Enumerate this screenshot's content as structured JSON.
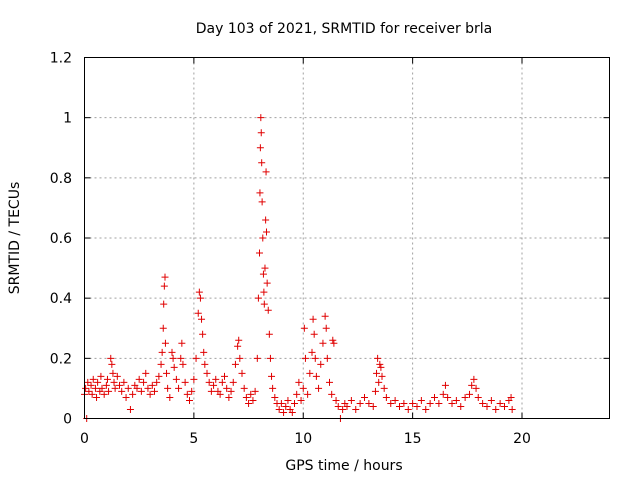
{
  "chart_data": {
    "type": "scatter",
    "title": "Day 103 of 2021, SRMTID for receiver brla",
    "xlabel": "GPS time / hours",
    "ylabel": "SRMTID / TECUs",
    "xlim": [
      0,
      24
    ],
    "ylim": [
      0,
      1.2
    ],
    "xticks": [
      0,
      5,
      10,
      15,
      20
    ],
    "xtick_labels": [
      "0",
      "5",
      "10",
      "15",
      "20"
    ],
    "yticks": [
      0,
      0.2,
      0.4,
      0.6,
      0.8,
      1,
      1.2
    ],
    "ytick_labels": [
      "0",
      "0.2",
      "0.4",
      "0.6",
      "0.8",
      "1",
      "1.2"
    ],
    "grid": true,
    "marker": "+",
    "color": "#e00000",
    "series": [
      {
        "name": "SRMTID",
        "points": [
          [
            0.0,
            0.08
          ],
          [
            0.05,
            0.1
          ],
          [
            0.1,
            0.0
          ],
          [
            0.15,
            0.12
          ],
          [
            0.2,
            0.09
          ],
          [
            0.3,
            0.11
          ],
          [
            0.35,
            0.08
          ],
          [
            0.4,
            0.13
          ],
          [
            0.5,
            0.1
          ],
          [
            0.55,
            0.07
          ],
          [
            0.6,
            0.12
          ],
          [
            0.7,
            0.09
          ],
          [
            0.75,
            0.14
          ],
          [
            0.8,
            0.1
          ],
          [
            0.9,
            0.08
          ],
          [
            1.0,
            0.11
          ],
          [
            1.05,
            0.13
          ],
          [
            1.1,
            0.09
          ],
          [
            1.2,
            0.2
          ],
          [
            1.25,
            0.18
          ],
          [
            1.3,
            0.15
          ],
          [
            1.35,
            0.12
          ],
          [
            1.4,
            0.1
          ],
          [
            1.5,
            0.14
          ],
          [
            1.6,
            0.11
          ],
          [
            1.7,
            0.09
          ],
          [
            1.8,
            0.12
          ],
          [
            1.9,
            0.07
          ],
          [
            2.0,
            0.1
          ],
          [
            2.1,
            0.03
          ],
          [
            2.2,
            0.08
          ],
          [
            2.3,
            0.11
          ],
          [
            2.4,
            0.1
          ],
          [
            2.5,
            0.13
          ],
          [
            2.6,
            0.09
          ],
          [
            2.7,
            0.12
          ],
          [
            2.8,
            0.15
          ],
          [
            2.9,
            0.1
          ],
          [
            3.0,
            0.08
          ],
          [
            3.1,
            0.11
          ],
          [
            3.2,
            0.09
          ],
          [
            3.3,
            0.12
          ],
          [
            3.4,
            0.14
          ],
          [
            3.5,
            0.18
          ],
          [
            3.55,
            0.22
          ],
          [
            3.6,
            0.3
          ],
          [
            3.62,
            0.38
          ],
          [
            3.65,
            0.44
          ],
          [
            3.68,
            0.47
          ],
          [
            3.7,
            0.25
          ],
          [
            3.75,
            0.15
          ],
          [
            3.8,
            0.1
          ],
          [
            3.9,
            0.07
          ],
          [
            4.0,
            0.22
          ],
          [
            4.05,
            0.2
          ],
          [
            4.1,
            0.17
          ],
          [
            4.2,
            0.13
          ],
          [
            4.3,
            0.1
          ],
          [
            4.4,
            0.2
          ],
          [
            4.45,
            0.25
          ],
          [
            4.5,
            0.18
          ],
          [
            4.6,
            0.12
          ],
          [
            4.7,
            0.08
          ],
          [
            4.8,
            0.06
          ],
          [
            4.9,
            0.09
          ],
          [
            5.0,
            0.13
          ],
          [
            5.1,
            0.2
          ],
          [
            5.2,
            0.35
          ],
          [
            5.25,
            0.42
          ],
          [
            5.3,
            0.4
          ],
          [
            5.35,
            0.33
          ],
          [
            5.4,
            0.28
          ],
          [
            5.45,
            0.22
          ],
          [
            5.5,
            0.18
          ],
          [
            5.6,
            0.15
          ],
          [
            5.7,
            0.12
          ],
          [
            5.8,
            0.09
          ],
          [
            5.9,
            0.11
          ],
          [
            6.0,
            0.13
          ],
          [
            6.1,
            0.09
          ],
          [
            6.2,
            0.08
          ],
          [
            6.3,
            0.12
          ],
          [
            6.4,
            0.14
          ],
          [
            6.5,
            0.1
          ],
          [
            6.6,
            0.07
          ],
          [
            6.7,
            0.09
          ],
          [
            6.8,
            0.12
          ],
          [
            6.9,
            0.18
          ],
          [
            7.0,
            0.24
          ],
          [
            7.05,
            0.26
          ],
          [
            7.1,
            0.2
          ],
          [
            7.2,
            0.15
          ],
          [
            7.3,
            0.1
          ],
          [
            7.4,
            0.07
          ],
          [
            7.5,
            0.05
          ],
          [
            7.6,
            0.08
          ],
          [
            7.7,
            0.06
          ],
          [
            7.8,
            0.09
          ],
          [
            7.9,
            0.2
          ],
          [
            7.95,
            0.4
          ],
          [
            8.0,
            0.55
          ],
          [
            8.02,
            0.75
          ],
          [
            8.04,
            0.9
          ],
          [
            8.06,
            1.0
          ],
          [
            8.08,
            0.95
          ],
          [
            8.1,
            0.85
          ],
          [
            8.12,
            0.72
          ],
          [
            8.15,
            0.6
          ],
          [
            8.18,
            0.48
          ],
          [
            8.2,
            0.42
          ],
          [
            8.22,
            0.38
          ],
          [
            8.25,
            0.5
          ],
          [
            8.28,
            0.66
          ],
          [
            8.3,
            0.82
          ],
          [
            8.32,
            0.62
          ],
          [
            8.35,
            0.45
          ],
          [
            8.4,
            0.36
          ],
          [
            8.45,
            0.28
          ],
          [
            8.5,
            0.2
          ],
          [
            8.55,
            0.14
          ],
          [
            8.6,
            0.1
          ],
          [
            8.7,
            0.07
          ],
          [
            8.8,
            0.05
          ],
          [
            8.9,
            0.03
          ],
          [
            9.0,
            0.05
          ],
          [
            9.1,
            0.02
          ],
          [
            9.2,
            0.04
          ],
          [
            9.3,
            0.06
          ],
          [
            9.4,
            0.03
          ],
          [
            9.5,
            0.02
          ],
          [
            9.6,
            0.05
          ],
          [
            9.7,
            0.08
          ],
          [
            9.8,
            0.12
          ],
          [
            9.9,
            0.06
          ],
          [
            10.0,
            0.1
          ],
          [
            10.05,
            0.3
          ],
          [
            10.1,
            0.2
          ],
          [
            10.2,
            0.08
          ],
          [
            10.3,
            0.15
          ],
          [
            10.4,
            0.22
          ],
          [
            10.45,
            0.33
          ],
          [
            10.5,
            0.28
          ],
          [
            10.55,
            0.2
          ],
          [
            10.6,
            0.14
          ],
          [
            10.7,
            0.1
          ],
          [
            10.8,
            0.18
          ],
          [
            10.9,
            0.25
          ],
          [
            11.0,
            0.34
          ],
          [
            11.05,
            0.3
          ],
          [
            11.1,
            0.2
          ],
          [
            11.2,
            0.12
          ],
          [
            11.3,
            0.08
          ],
          [
            11.35,
            0.26
          ],
          [
            11.4,
            0.25
          ],
          [
            11.5,
            0.06
          ],
          [
            11.6,
            0.04
          ],
          [
            11.7,
            0.0
          ],
          [
            11.8,
            0.03
          ],
          [
            11.9,
            0.05
          ],
          [
            12.0,
            0.04
          ],
          [
            12.2,
            0.06
          ],
          [
            12.4,
            0.03
          ],
          [
            12.6,
            0.05
          ],
          [
            12.8,
            0.07
          ],
          [
            13.0,
            0.05
          ],
          [
            13.2,
            0.04
          ],
          [
            13.3,
            0.09
          ],
          [
            13.35,
            0.15
          ],
          [
            13.4,
            0.2
          ],
          [
            13.45,
            0.12
          ],
          [
            13.5,
            0.18
          ],
          [
            13.55,
            0.17
          ],
          [
            13.6,
            0.14
          ],
          [
            13.7,
            0.1
          ],
          [
            13.8,
            0.07
          ],
          [
            14.0,
            0.05
          ],
          [
            14.2,
            0.06
          ],
          [
            14.4,
            0.04
          ],
          [
            14.6,
            0.05
          ],
          [
            14.8,
            0.03
          ],
          [
            15.0,
            0.05
          ],
          [
            15.2,
            0.04
          ],
          [
            15.4,
            0.06
          ],
          [
            15.6,
            0.03
          ],
          [
            15.8,
            0.05
          ],
          [
            16.0,
            0.07
          ],
          [
            16.2,
            0.05
          ],
          [
            16.4,
            0.08
          ],
          [
            16.5,
            0.11
          ],
          [
            16.6,
            0.07
          ],
          [
            16.8,
            0.05
          ],
          [
            17.0,
            0.06
          ],
          [
            17.2,
            0.04
          ],
          [
            17.4,
            0.07
          ],
          [
            17.6,
            0.08
          ],
          [
            17.7,
            0.11
          ],
          [
            17.8,
            0.13
          ],
          [
            17.9,
            0.1
          ],
          [
            18.0,
            0.07
          ],
          [
            18.2,
            0.05
          ],
          [
            18.4,
            0.04
          ],
          [
            18.6,
            0.06
          ],
          [
            18.8,
            0.03
          ],
          [
            19.0,
            0.05
          ],
          [
            19.2,
            0.04
          ],
          [
            19.4,
            0.06
          ],
          [
            19.5,
            0.07
          ],
          [
            19.55,
            0.03
          ]
        ]
      }
    ]
  }
}
